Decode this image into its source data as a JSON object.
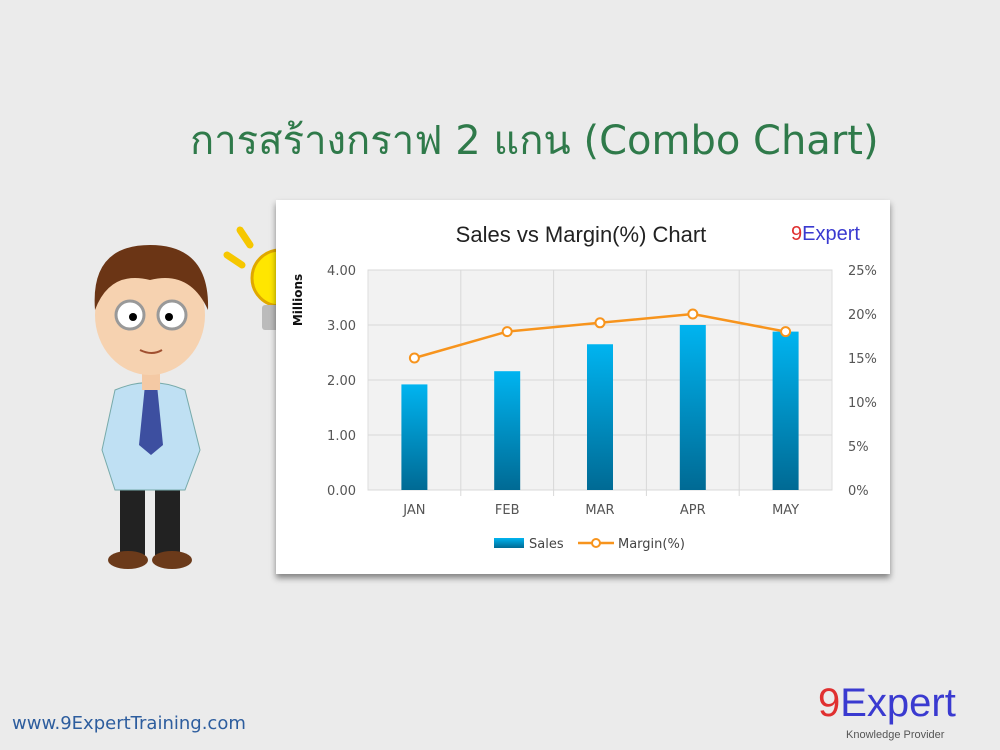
{
  "slide": {
    "title": "การสร้างกราฟ 2 แกน (Combo Chart)",
    "url": "www.9ExpertTraining.com",
    "logo": {
      "main": "9Expert",
      "tagline": "Knowledge Provider"
    }
  },
  "chart_data": {
    "type": "bar+line",
    "title": "Sales vs Margin(%) Chart",
    "categories": [
      "JAN",
      "FEB",
      "MAR",
      "APR",
      "MAY"
    ],
    "ylabel": "Millions",
    "ylim": [
      0,
      4
    ],
    "yticks": [
      "0.00",
      "1.00",
      "2.00",
      "3.00",
      "4.00"
    ],
    "y2lim": [
      0,
      25
    ],
    "y2ticks": [
      "0%",
      "5%",
      "10%",
      "15%",
      "20%",
      "25%"
    ],
    "grid": true,
    "legend": "bottom",
    "series": [
      {
        "name": "Sales",
        "type": "bar",
        "axis": "left",
        "values": [
          1.92,
          2.16,
          2.65,
          3.0,
          2.88
        ],
        "color": "#00a8e8"
      },
      {
        "name": "Margin(%)",
        "type": "line",
        "axis": "right",
        "values": [
          15,
          18,
          19,
          20,
          18
        ],
        "color": "#f7941d"
      }
    ]
  }
}
